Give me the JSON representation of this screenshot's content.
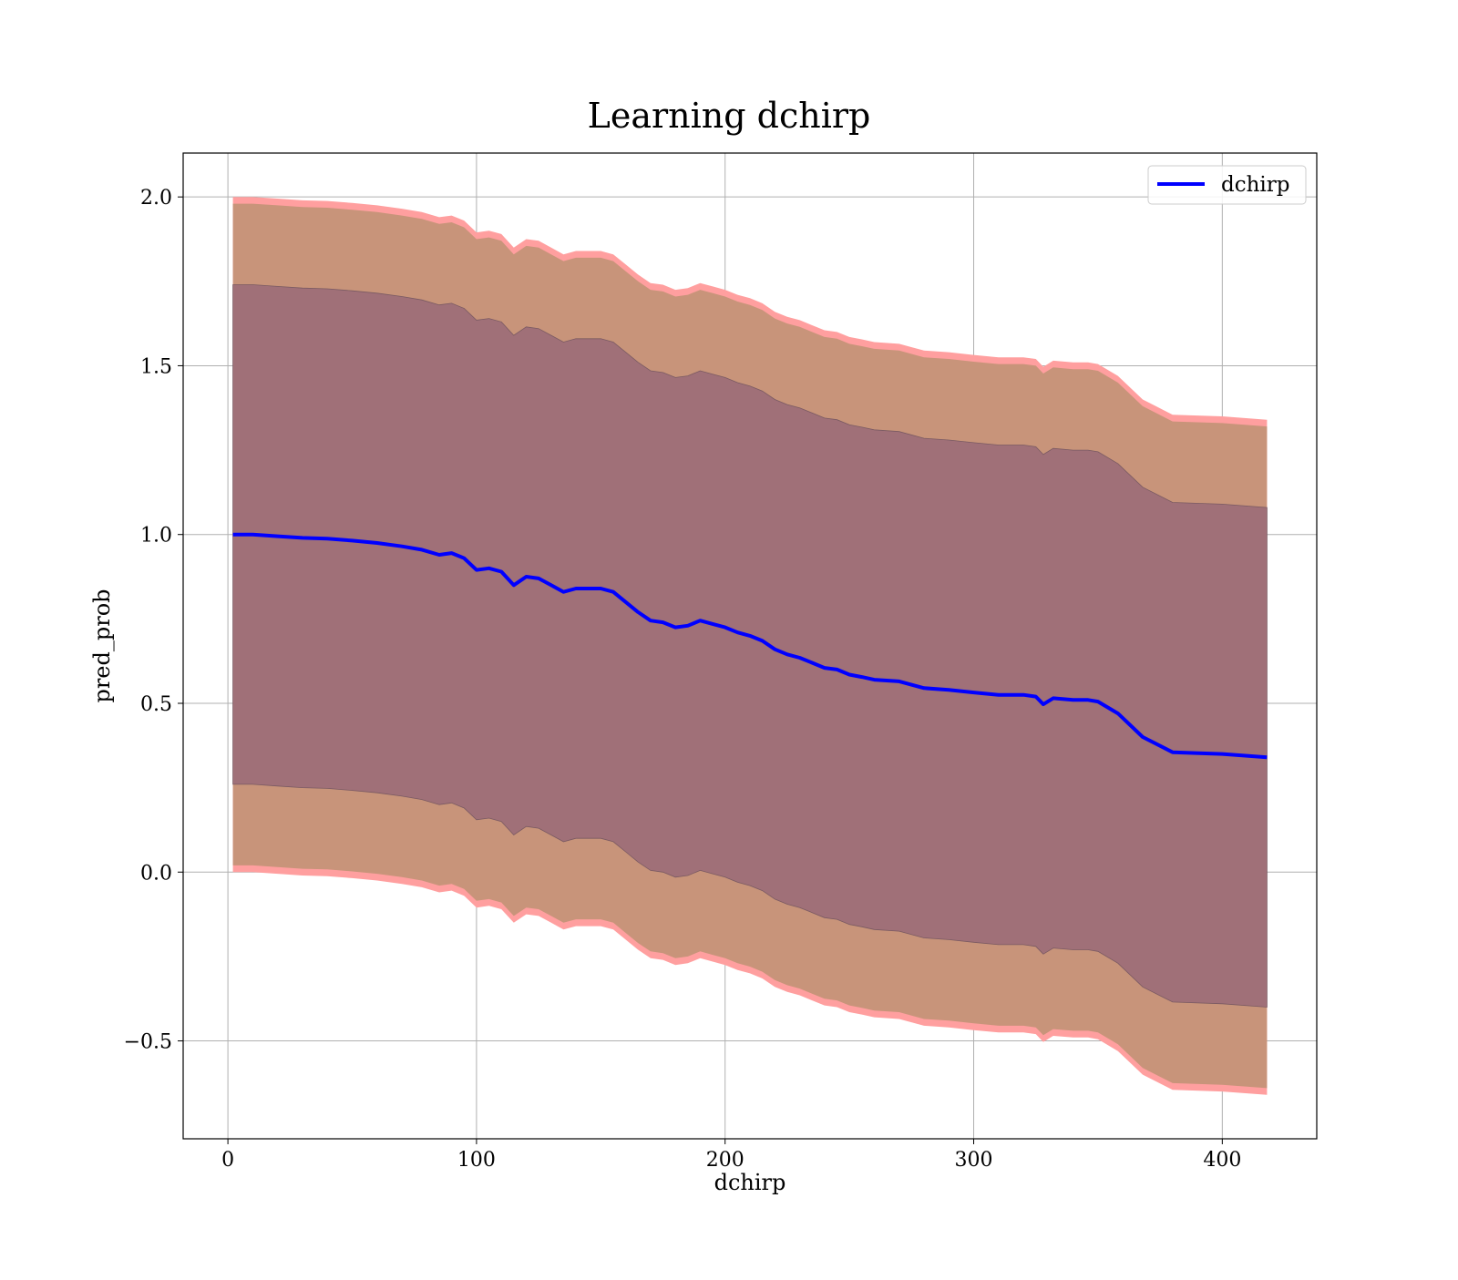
{
  "chart_data": {
    "type": "line",
    "title": "Learning dchirp",
    "xlabel": "dchirp",
    "ylabel": "pred_prob",
    "xlim": [
      -18,
      438
    ],
    "ylim": [
      -0.79,
      2.13
    ],
    "xticks": [
      0,
      100,
      200,
      300,
      400
    ],
    "xtick_labels": [
      "0",
      "100",
      "200",
      "300",
      "400"
    ],
    "yticks": [
      -0.5,
      0.0,
      0.5,
      1.0,
      1.5,
      2.0
    ],
    "ytick_labels": [
      "−0.5",
      "0.0",
      "0.5",
      "1.0",
      "1.5",
      "2.0"
    ],
    "grid": true,
    "legend": {
      "position": "top-right",
      "entries": [
        "dchirp"
      ]
    },
    "colors": {
      "line": "#0000ff",
      "outer_band_edge": "#ff9f9f",
      "outer_band": "#c8947a",
      "inner_band": "#a07078",
      "grid": "#b0b0b0"
    },
    "x": [
      2,
      10,
      20,
      30,
      40,
      50,
      60,
      70,
      78,
      85,
      90,
      95,
      100,
      105,
      110,
      115,
      120,
      125,
      130,
      135,
      140,
      145,
      150,
      155,
      160,
      165,
      170,
      175,
      180,
      185,
      190,
      195,
      200,
      205,
      210,
      215,
      220,
      225,
      230,
      235,
      240,
      245,
      250,
      255,
      260,
      270,
      280,
      290,
      300,
      310,
      320,
      325,
      328,
      332,
      340,
      346,
      350,
      358,
      368,
      380,
      400,
      418
    ],
    "series": [
      {
        "name": "dchirp",
        "values": [
          1.0,
          1.0,
          0.995,
          0.99,
          0.988,
          0.982,
          0.975,
          0.965,
          0.955,
          0.94,
          0.945,
          0.93,
          0.895,
          0.9,
          0.89,
          0.85,
          0.875,
          0.87,
          0.85,
          0.83,
          0.84,
          0.84,
          0.84,
          0.83,
          0.8,
          0.77,
          0.745,
          0.74,
          0.725,
          0.73,
          0.745,
          0.735,
          0.725,
          0.71,
          0.7,
          0.685,
          0.66,
          0.645,
          0.635,
          0.62,
          0.605,
          0.6,
          0.585,
          0.578,
          0.57,
          0.565,
          0.545,
          0.54,
          0.532,
          0.525,
          0.525,
          0.52,
          0.497,
          0.515,
          0.51,
          0.51,
          0.505,
          0.47,
          0.4,
          0.355,
          0.35,
          0.34
        ]
      }
    ],
    "bands": [
      {
        "name": "outer",
        "half_width": 1.0
      },
      {
        "name": "inner",
        "half_width": 0.74
      }
    ]
  }
}
